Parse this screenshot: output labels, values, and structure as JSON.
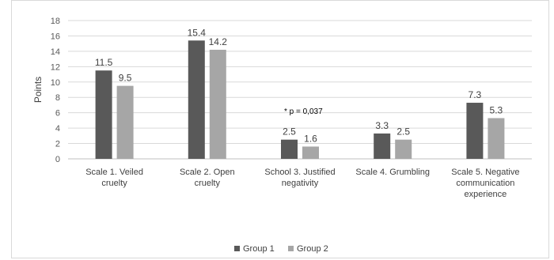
{
  "chart_data": {
    "type": "bar",
    "categories": [
      [
        "Scale 1. Veiled",
        "cruelty"
      ],
      [
        "Scale 2. Open",
        "cruelty"
      ],
      [
        "School 3. Justified",
        "negativity"
      ],
      [
        "Scale 4. Grumbling"
      ],
      [
        "Scale 5. Negative",
        "communication",
        "experience"
      ]
    ],
    "series": [
      {
        "name": "Group 1",
        "values": [
          11.5,
          15.4,
          2.5,
          3.3,
          7.3
        ],
        "color": "#595959"
      },
      {
        "name": "Group 2",
        "values": [
          9.5,
          14.2,
          1.6,
          2.5,
          5.3
        ],
        "color": "#a6a6a6"
      }
    ],
    "ylabel": "Points",
    "ylim": [
      0,
      18
    ],
    "yticks": [
      0,
      2,
      4,
      6,
      8,
      10,
      12,
      14,
      16,
      18
    ],
    "grid": true,
    "legend_position": "bottom",
    "annotation": {
      "text": "* p = 0,037",
      "category_index": 2
    }
  }
}
